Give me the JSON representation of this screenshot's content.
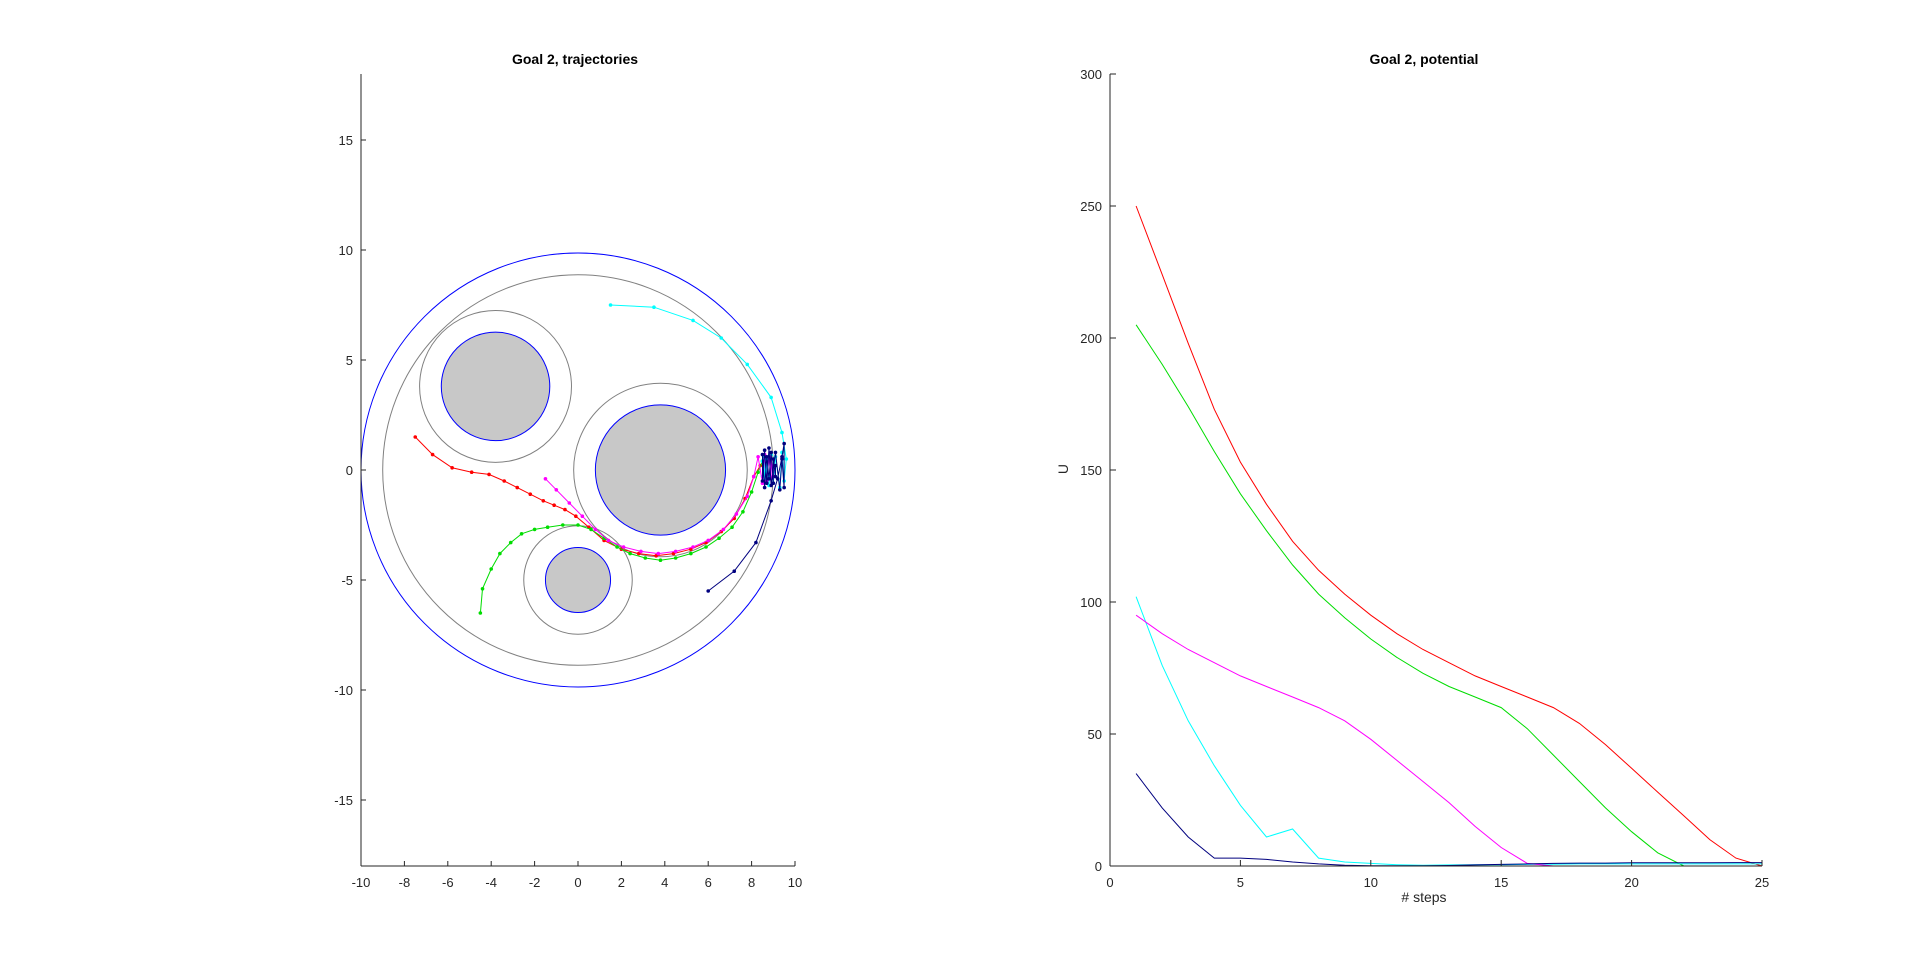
{
  "chart_data": [
    {
      "type": "scatter",
      "title": "Goal 2, trajectories",
      "xlabel": "",
      "ylabel": "",
      "xlim": [
        -10,
        10
      ],
      "ylim": [
        -18,
        18
      ],
      "xticks": [
        -10,
        -8,
        -6,
        -4,
        -2,
        0,
        2,
        4,
        6,
        8,
        10
      ],
      "yticks": [
        -15,
        -10,
        -5,
        0,
        5,
        10,
        15
      ],
      "grid": false,
      "workspace": {
        "center": [
          0,
          0
        ],
        "radius": 10,
        "margin_radius": 9,
        "color": "#0000ff",
        "margin_color": "#808080"
      },
      "obstacles": [
        {
          "center": [
            -3.8,
            3.8
          ],
          "radius": 2.5,
          "margin_radius": 3.5
        },
        {
          "center": [
            3.8,
            0
          ],
          "radius": 3.0,
          "margin_radius": 4.0
        },
        {
          "center": [
            0,
            -5
          ],
          "radius": 1.5,
          "margin_radius": 2.5
        }
      ],
      "obstacle_fill": "#c8c8c8",
      "obstacle_edge": "#0000ff",
      "series": [
        {
          "color": "#ff0000",
          "x": [
            -7.5,
            -6.7,
            -5.8,
            -4.9,
            -4.1,
            -3.4,
            -2.8,
            -2.2,
            -1.6,
            -1.1,
            -0.6,
            -0.1,
            0.5,
            1.2,
            2.0,
            2.8,
            3.6,
            4.4,
            5.2,
            5.9,
            6.6,
            7.2,
            7.7,
            8.1,
            8.4
          ],
          "y": [
            1.5,
            0.7,
            0.1,
            -0.1,
            -0.2,
            -0.5,
            -0.8,
            -1.1,
            -1.4,
            -1.6,
            -1.8,
            -2.1,
            -2.6,
            -3.2,
            -3.6,
            -3.8,
            -3.9,
            -3.8,
            -3.6,
            -3.3,
            -2.8,
            -2.2,
            -1.3,
            -0.3,
            0.2
          ]
        },
        {
          "color": "#00dd00",
          "x": [
            -4.5,
            -4.4,
            -4.0,
            -3.6,
            -3.1,
            -2.6,
            -2.0,
            -1.4,
            -0.7,
            0.0,
            0.6,
            1.2,
            1.8,
            2.4,
            3.1,
            3.8,
            4.5,
            5.2,
            5.9,
            6.5,
            7.1,
            7.6,
            8.0,
            8.3,
            8.5
          ],
          "y": [
            -6.5,
            -5.4,
            -4.5,
            -3.8,
            -3.3,
            -2.9,
            -2.7,
            -2.6,
            -2.5,
            -2.5,
            -2.7,
            -3.1,
            -3.5,
            -3.8,
            -4.0,
            -4.1,
            -4.0,
            -3.8,
            -3.5,
            -3.1,
            -2.6,
            -1.9,
            -1.0,
            -0.1,
            0.4
          ]
        },
        {
          "color": "#00ffff",
          "x": [
            1.5,
            3.5,
            5.3,
            6.6,
            7.8,
            8.9,
            9.4,
            9.6,
            9.5,
            9.4,
            9.3,
            9.1,
            9.0,
            8.9,
            8.8,
            8.7,
            8.7,
            8.6,
            8.6,
            8.5,
            8.5,
            8.6,
            8.6,
            8.7,
            8.7
          ],
          "y": [
            7.5,
            7.4,
            6.8,
            6.0,
            4.8,
            3.3,
            1.7,
            0.5,
            -0.5,
            0.8,
            -0.8,
            0.6,
            -0.6,
            0.7,
            -0.7,
            0.5,
            -0.4,
            0.6,
            -0.5,
            0.4,
            -0.3,
            0.2,
            -0.2,
            0.3,
            0.0
          ]
        },
        {
          "color": "#ff00ff",
          "x": [
            -1.5,
            -1.0,
            -0.4,
            0.2,
            0.8,
            1.4,
            2.1,
            2.9,
            3.7,
            4.5,
            5.3,
            6.0,
            6.7,
            7.3,
            7.8,
            8.1,
            8.3,
            8.5,
            8.6,
            8.7,
            8.8,
            8.9,
            8.9,
            9.0,
            9.0
          ],
          "y": [
            -0.4,
            -0.9,
            -1.5,
            -2.1,
            -2.7,
            -3.2,
            -3.5,
            -3.7,
            -3.8,
            -3.7,
            -3.5,
            -3.2,
            -2.7,
            -2.0,
            -1.2,
            -0.3,
            0.6,
            -0.6,
            0.7,
            -0.5,
            0.6,
            -0.4,
            0.5,
            -0.3,
            0.2
          ]
        },
        {
          "color": "#00007f",
          "x": [
            6.0,
            7.2,
            8.2,
            8.9,
            9.2,
            9.4,
            9.5,
            9.5,
            9.4,
            9.3,
            9.1,
            8.9,
            8.8,
            8.7,
            8.6,
            8.5,
            8.5,
            8.6,
            8.7,
            8.8,
            8.9,
            9.0,
            9.0,
            9.1,
            9.1
          ],
          "y": [
            -5.5,
            -4.6,
            -3.3,
            -1.4,
            -0.4,
            0.6,
            1.2,
            -0.8,
            0.5,
            -0.9,
            0.8,
            -0.7,
            1.0,
            -0.6,
            0.9,
            -0.5,
            0.7,
            -0.8,
            0.6,
            -0.4,
            0.8,
            -0.6,
            0.5,
            -0.3,
            0.2
          ]
        }
      ]
    },
    {
      "type": "line",
      "title": "Goal 2, potential",
      "xlabel": "# steps",
      "ylabel": "U",
      "xlim": [
        0,
        25
      ],
      "ylim": [
        0,
        300
      ],
      "xticks": [
        0,
        5,
        10,
        15,
        20,
        25
      ],
      "yticks": [
        0,
        50,
        100,
        150,
        200,
        250,
        300
      ],
      "grid": false,
      "x": [
        1,
        2,
        3,
        4,
        5,
        6,
        7,
        8,
        9,
        10,
        11,
        12,
        13,
        14,
        15,
        16,
        17,
        18,
        19,
        20,
        21,
        22,
        23,
        24,
        25
      ],
      "series": [
        {
          "color": "#ff0000",
          "values": [
            250,
            224,
            198,
            173,
            153,
            137,
            123,
            112,
            103,
            95,
            88,
            82,
            77,
            72,
            68,
            64,
            60,
            54,
            46,
            37,
            28,
            19,
            10,
            3,
            0
          ]
        },
        {
          "color": "#00dd00",
          "values": [
            205,
            190,
            174,
            157,
            141,
            127,
            114,
            103,
            94,
            86,
            79,
            73,
            68,
            64,
            60,
            52,
            42,
            32,
            22,
            13,
            5,
            0,
            0,
            0,
            0
          ]
        },
        {
          "color": "#00ffff",
          "values": [
            102,
            76,
            55,
            38,
            23,
            11,
            14,
            3,
            1.5,
            1,
            0.5,
            0.3,
            0.4,
            0.5,
            0.5,
            0.6,
            0.7,
            0.8,
            0.8,
            0.8,
            0.8,
            0.8,
            0.8,
            0.8,
            0.8
          ]
        },
        {
          "color": "#ff00ff",
          "values": [
            95,
            88,
            82,
            77,
            72,
            68,
            64,
            60,
            55,
            48,
            40,
            32,
            24,
            15,
            7,
            1,
            0,
            0,
            0,
            0,
            0,
            0,
            0,
            0,
            0
          ]
        },
        {
          "color": "#00007f",
          "values": [
            35,
            22,
            11,
            3,
            3,
            2.5,
            1.5,
            0.8,
            0.3,
            0.1,
            0.1,
            0.1,
            0.2,
            0.4,
            0.6,
            0.8,
            1.0,
            1.1,
            1.1,
            1.2,
            1.2,
            1.2,
            1.2,
            1.3,
            1.3
          ]
        }
      ]
    }
  ]
}
